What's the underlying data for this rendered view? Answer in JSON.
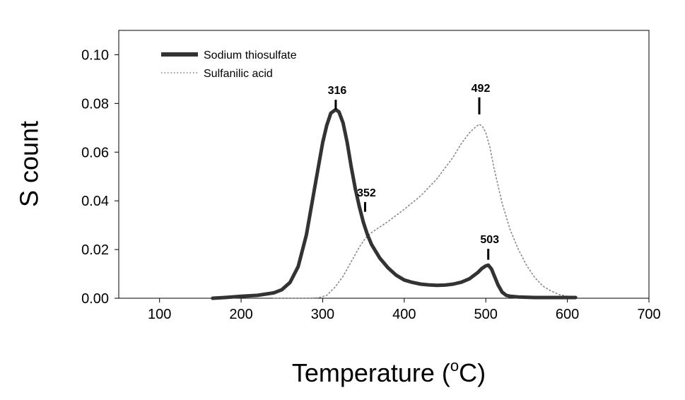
{
  "chart_data": {
    "type": "line",
    "xlabel": "Temperature (",
    "xlabel_sup": "o",
    "xlabel_suffix": "C)",
    "ylabel": "S count",
    "xlim": [
      50,
      700
    ],
    "ylim": [
      0,
      0.11
    ],
    "xticks": [
      100,
      200,
      300,
      400,
      500,
      600,
      700
    ],
    "xtick_labels": [
      "100",
      "200",
      "300",
      "400",
      "500",
      "600",
      "700"
    ],
    "yticks": [
      0.0,
      0.02,
      0.04,
      0.06,
      0.08,
      0.1
    ],
    "ytick_labels": [
      "0.00",
      "0.02",
      "0.04",
      "0.06",
      "0.08",
      "0.10"
    ],
    "grid": false,
    "legend_position": "top-left",
    "series": [
      {
        "name": "Sodium thiosulfate",
        "style": "solid",
        "color": "#333333",
        "x": [
          165,
          180,
          200,
          220,
          240,
          250,
          260,
          270,
          280,
          290,
          300,
          305,
          310,
          316,
          320,
          325,
          330,
          335,
          340,
          345,
          350,
          355,
          360,
          370,
          380,
          390,
          400,
          410,
          420,
          430,
          440,
          450,
          460,
          470,
          480,
          490,
          495,
          500,
          503,
          507,
          510,
          515,
          520,
          525,
          530,
          540,
          560,
          580,
          600,
          610
        ],
        "y": [
          0.0,
          0.0003,
          0.0008,
          0.0012,
          0.0022,
          0.0035,
          0.0065,
          0.013,
          0.026,
          0.045,
          0.064,
          0.071,
          0.076,
          0.0775,
          0.0765,
          0.072,
          0.064,
          0.054,
          0.045,
          0.0375,
          0.031,
          0.026,
          0.022,
          0.0165,
          0.0125,
          0.0095,
          0.0075,
          0.0065,
          0.0058,
          0.0055,
          0.0053,
          0.0054,
          0.0058,
          0.0066,
          0.008,
          0.0105,
          0.0122,
          0.0133,
          0.0136,
          0.012,
          0.0095,
          0.0055,
          0.0025,
          0.0012,
          0.0008,
          0.0005,
          0.0003,
          0.0003,
          0.0003,
          0.0003
        ]
      },
      {
        "name": "Sulfanilic acid",
        "style": "dotted",
        "color": "#888888",
        "x": [
          240,
          260,
          280,
          295,
          305,
          315,
          325,
          335,
          345,
          352,
          360,
          380,
          400,
          420,
          440,
          460,
          470,
          480,
          488,
          492,
          496,
          500,
          505,
          510,
          520,
          530,
          540,
          550,
          560,
          570,
          580,
          590,
          600,
          610
        ],
        "y": [
          0.0,
          0.0,
          0.0,
          0.0002,
          0.0012,
          0.0045,
          0.009,
          0.015,
          0.021,
          0.0245,
          0.027,
          0.0315,
          0.0365,
          0.042,
          0.049,
          0.058,
          0.0635,
          0.068,
          0.0705,
          0.0715,
          0.0705,
          0.068,
          0.062,
          0.0535,
          0.039,
          0.028,
          0.02,
          0.0135,
          0.0085,
          0.005,
          0.003,
          0.0015,
          0.0008,
          0.0005
        ]
      }
    ],
    "annotations": [
      {
        "label": "316",
        "x": 316,
        "y": 0.0775,
        "tick_length": 0.004
      },
      {
        "label": "352",
        "x": 352,
        "y": 0.0355,
        "tick_length": 0.004
      },
      {
        "label": "492",
        "x": 492,
        "y": 0.0755,
        "tick_length": 0.007
      },
      {
        "label": "503",
        "x": 503,
        "y": 0.0158,
        "tick_length": 0.0045
      }
    ]
  }
}
